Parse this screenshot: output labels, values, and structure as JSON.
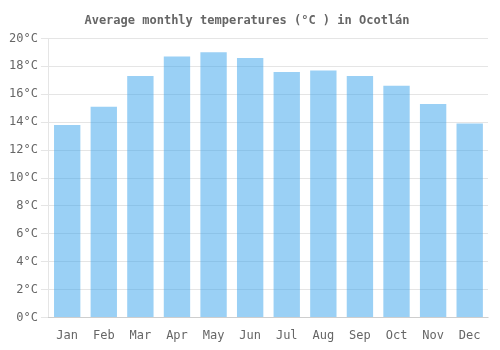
{
  "chart_data": {
    "type": "bar",
    "title": "Average monthly temperatures (°C ) in Ocotlán",
    "categories": [
      "Jan",
      "Feb",
      "Mar",
      "Apr",
      "May",
      "Jun",
      "Jul",
      "Aug",
      "Sep",
      "Oct",
      "Nov",
      "Dec"
    ],
    "values": [
      13.8,
      15.1,
      17.3,
      18.7,
      19.0,
      18.6,
      17.6,
      17.7,
      17.3,
      16.6,
      15.3,
      13.9
    ],
    "ylim": [
      0,
      20
    ],
    "yticks": [
      {
        "value": 0,
        "label": "0°C"
      },
      {
        "value": 2,
        "label": "2°C"
      },
      {
        "value": 4,
        "label": "4°C"
      },
      {
        "value": 6,
        "label": "6°C"
      },
      {
        "value": 8,
        "label": "8°C"
      },
      {
        "value": 10,
        "label": "10°C"
      },
      {
        "value": 12,
        "label": "12°C"
      },
      {
        "value": 14,
        "label": "14°C"
      },
      {
        "value": 16,
        "label": "16°C"
      },
      {
        "value": 18,
        "label": "18°C"
      },
      {
        "value": 20,
        "label": "20°C"
      }
    ],
    "grid": true
  }
}
